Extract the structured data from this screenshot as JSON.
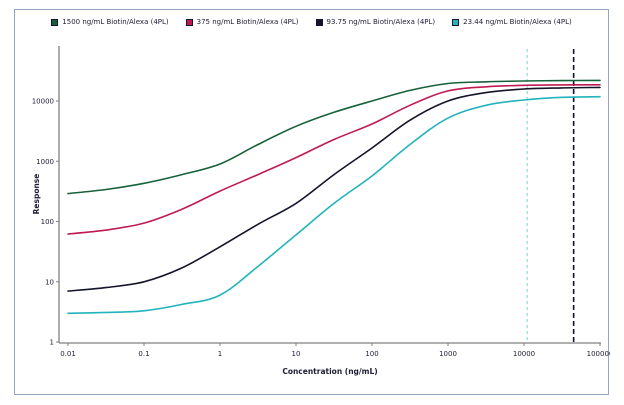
{
  "chart": {
    "legend_items": [
      {
        "label": "1500 ng/mL Biotin/Alexa (4PL)",
        "color": "#17603a"
      },
      {
        "label": "375 ng/mL Biotin/Alexa (4PL)",
        "color": "#c01a55"
      },
      {
        "label": "93.75 ng/mL Biotin/Alexa (4PL)",
        "color": "#14142b"
      },
      {
        "label": "23.44 ng/mL Biotin/Alexa (4PL)",
        "color": "#22b3bc"
      }
    ],
    "x_axis": {
      "label": "Concentration (ng/mL)",
      "tick_labels": [
        "0.01",
        "0.1",
        "1",
        "10",
        "100",
        "1000",
        "10000",
        "100000"
      ]
    },
    "y_axis": {
      "label": "Response",
      "tick_labels": [
        "1",
        "10",
        "100",
        "1000",
        "10000"
      ]
    },
    "colors": {
      "axis": "#808080",
      "text": "#1c1c35",
      "frame_border": "#94a6bb"
    }
  },
  "chart_data": {
    "type": "line",
    "title": "",
    "xlabel": "Concentration (ng/mL)",
    "ylabel": "Response",
    "x_scale": "log",
    "y_scale": "log",
    "xlim": [
      0.01,
      100000
    ],
    "ylim": [
      1,
      80000
    ],
    "x_ticks": [
      0.01,
      0.1,
      1,
      10,
      100,
      1000,
      10000,
      100000
    ],
    "y_ticks": [
      1,
      10,
      100,
      1000,
      10000
    ],
    "grid": false,
    "legend_position": "top",
    "series": [
      {
        "name": "1500 ng/mL Biotin/Alexa (4PL)",
        "color": "#17603a",
        "points": [
          [
            0.01,
            290
          ],
          [
            0.0316,
            340
          ],
          [
            0.1,
            430
          ],
          [
            0.316,
            600
          ],
          [
            1,
            900
          ],
          [
            3.16,
            1900
          ],
          [
            10,
            3800
          ],
          [
            31.6,
            6500
          ],
          [
            100,
            10000
          ],
          [
            316,
            15000
          ],
          [
            1000,
            19500
          ],
          [
            3160,
            20800
          ],
          [
            10000,
            21500
          ],
          [
            31600,
            21800
          ],
          [
            100000,
            22000
          ]
        ]
      },
      {
        "name": "375 ng/mL Biotin/Alexa (4PL)",
        "color": "#c01a55",
        "points": [
          [
            0.01,
            62
          ],
          [
            0.0316,
            72
          ],
          [
            0.1,
            94
          ],
          [
            0.316,
            160
          ],
          [
            1,
            320
          ],
          [
            3.16,
            600
          ],
          [
            10,
            1150
          ],
          [
            31.6,
            2300
          ],
          [
            100,
            4150
          ],
          [
            316,
            8500
          ],
          [
            1000,
            14700
          ],
          [
            3160,
            17200
          ],
          [
            10000,
            18200
          ],
          [
            31600,
            18500
          ],
          [
            100000,
            18600
          ]
        ]
      },
      {
        "name": "93.75 ng/mL Biotin/Alexa (4PL)",
        "color": "#14142b",
        "points": [
          [
            0.01,
            7
          ],
          [
            0.0316,
            8
          ],
          [
            0.1,
            10
          ],
          [
            0.316,
            17
          ],
          [
            1,
            38
          ],
          [
            3.16,
            90
          ],
          [
            10,
            200
          ],
          [
            31.6,
            600
          ],
          [
            100,
            1660
          ],
          [
            316,
            4800
          ],
          [
            1000,
            10000
          ],
          [
            3160,
            13800
          ],
          [
            10000,
            15800
          ],
          [
            31600,
            16500
          ],
          [
            100000,
            16800
          ]
        ]
      },
      {
        "name": "23.44 ng/mL Biotin/Alexa (4PL)",
        "color": "#22b3bc",
        "points": [
          [
            0.01,
            3
          ],
          [
            0.0316,
            3.1
          ],
          [
            0.1,
            3.3
          ],
          [
            0.316,
            4.2
          ],
          [
            1,
            6
          ],
          [
            3.16,
            18
          ],
          [
            10,
            60
          ],
          [
            31.6,
            200
          ],
          [
            100,
            570
          ],
          [
            316,
            1900
          ],
          [
            1000,
            5200
          ],
          [
            3160,
            8500
          ],
          [
            10000,
            10400
          ],
          [
            31600,
            11500
          ],
          [
            100000,
            11800
          ]
        ]
      }
    ],
    "reference_lines": [
      {
        "axis": "x",
        "value": 11000,
        "color": "#8fd9df",
        "style": "dashed",
        "name": "cyan-dashed-marker"
      },
      {
        "axis": "x",
        "value": 45000,
        "color": "#14142b",
        "style": "dashed",
        "name": "dark-dashed-marker"
      }
    ]
  }
}
